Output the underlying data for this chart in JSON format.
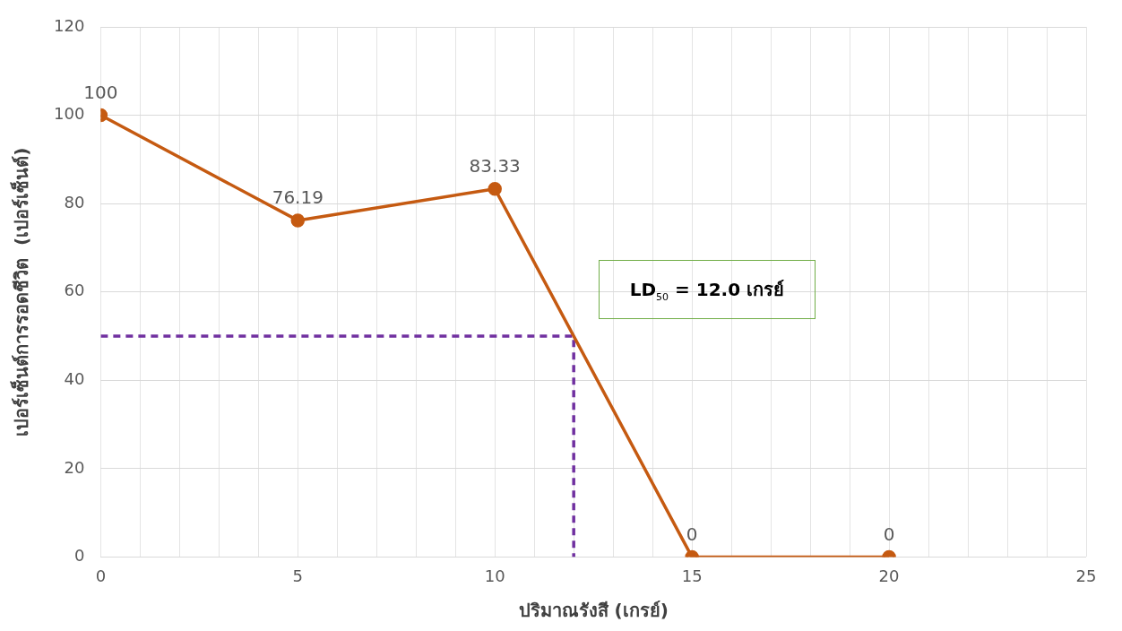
{
  "chart_data": {
    "type": "line",
    "xlabel": "ปริมาณรังสี (เกรย์)",
    "ylabel": "เปอร์เซ็นต์การรอดชีวิต  (เปอร์เซ็นต์)",
    "xlim": [
      0,
      25
    ],
    "xticks": [
      0,
      {
        "value": 1,
        "label": null
      },
      {
        "value": 2,
        "label": null
      },
      {
        "value": 3,
        "label": null
      },
      {
        "value": 4,
        "label": null
      },
      5,
      {
        "value": 6,
        "label": null
      },
      {
        "value": 7,
        "label": null
      },
      {
        "value": 8,
        "label": null
      },
      {
        "value": 9,
        "label": null
      },
      10,
      {
        "value": 11,
        "label": null
      },
      {
        "value": 12,
        "label": null
      },
      {
        "value": 13,
        "label": null
      },
      {
        "value": 14,
        "label": null
      },
      15,
      {
        "value": 16,
        "label": null
      },
      {
        "value": 17,
        "label": null
      },
      {
        "value": 18,
        "label": null
      },
      {
        "value": 19,
        "label": null
      },
      20,
      {
        "value": 21,
        "label": null
      },
      {
        "value": 22,
        "label": null
      },
      {
        "value": 23,
        "label": null
      },
      {
        "value": 24,
        "label": null
      },
      25
    ],
    "ylim": [
      0,
      120
    ],
    "yticks": [
      0,
      20,
      40,
      60,
      80,
      100,
      120
    ],
    "grid": true,
    "legend": false,
    "series": [
      {
        "color": "#c55a11",
        "x": [
          0,
          5,
          10,
          15,
          20
        ],
        "values": [
          100,
          76.19,
          83.33,
          0,
          0
        ],
        "marker": "circle",
        "line_style": "solid",
        "value_labels": [
          "100",
          "76.19",
          "83.33",
          "0",
          "0"
        ]
      },
      {
        "color": "#7030a0",
        "x": [
          0,
          12,
          12
        ],
        "values": [
          50,
          50,
          0
        ],
        "marker": "none",
        "line_style": "dashed"
      }
    ],
    "annotations": [
      "LD$_{50}$ = 12.0 เกรย์"
    ]
  }
}
